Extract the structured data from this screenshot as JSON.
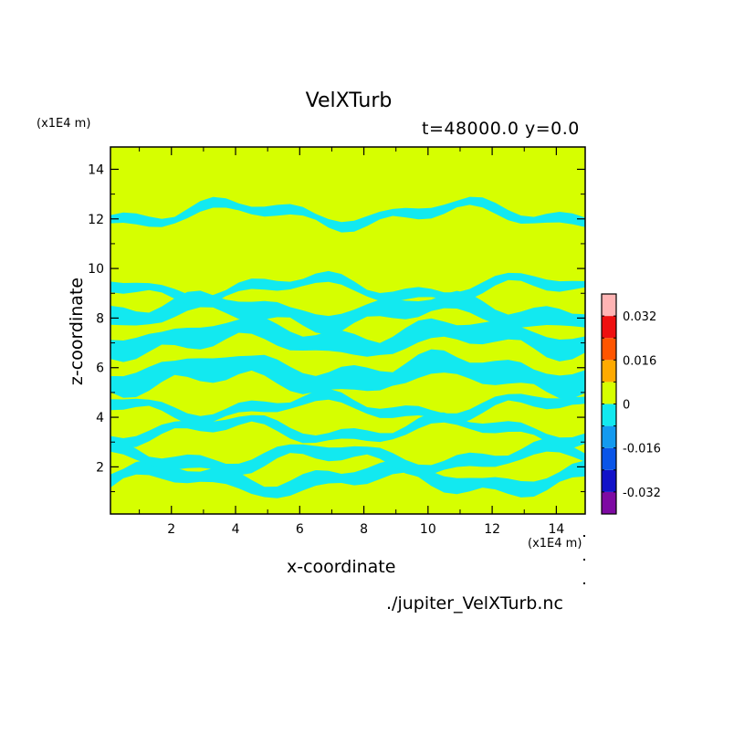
{
  "chart_data": {
    "type": "heatmap",
    "title": "VelXTurb",
    "subtitle": "t=48000.0 y=0.0",
    "xlabel": "x-coordinate",
    "ylabel": "z-coordinate",
    "x_unit": "(x1E4 m)",
    "y_unit": "(x1E4 m)",
    "xlim": [
      0.1,
      14.9
    ],
    "ylim": [
      0.1,
      14.9
    ],
    "x_ticks": [
      2,
      4,
      6,
      8,
      10,
      12,
      14
    ],
    "y_ticks": [
      2,
      4,
      6,
      8,
      10,
      12,
      14
    ],
    "colorbar": {
      "levels": [
        -0.04,
        -0.032,
        -0.024,
        -0.016,
        -0.008,
        0,
        0.008,
        0.016,
        0.024,
        0.032,
        0.04
      ],
      "colors": [
        "#7e0aa3",
        "#1212c8",
        "#0a55e8",
        "#139af0",
        "#12e9f0",
        "#d6ff00",
        "#ffaa00",
        "#ff5500",
        "#ee1010",
        "#ffb4b4"
      ],
      "tick_labels": [
        "0.032",
        "0.016",
        "0",
        "-0.016",
        "-0.032"
      ],
      "tick_values": [
        0.032,
        0.016,
        0,
        -0.016,
        -0.032
      ]
    },
    "field_colors": {
      "background": "#d6ff00",
      "negative": "#12e9f0"
    },
    "source": "./jupiter_VelXTurb.nc",
    "negative_band_z": [
      [
        1.2,
        1.8
      ],
      [
        2.1,
        2.6
      ],
      [
        3.3,
        3.7
      ],
      [
        4.2,
        4.6
      ],
      [
        5.3,
        6.2
      ],
      [
        6.8,
        7.6
      ],
      [
        7.9,
        8.6
      ],
      [
        9.0,
        9.4
      ],
      [
        12.0,
        12.4
      ]
    ]
  }
}
